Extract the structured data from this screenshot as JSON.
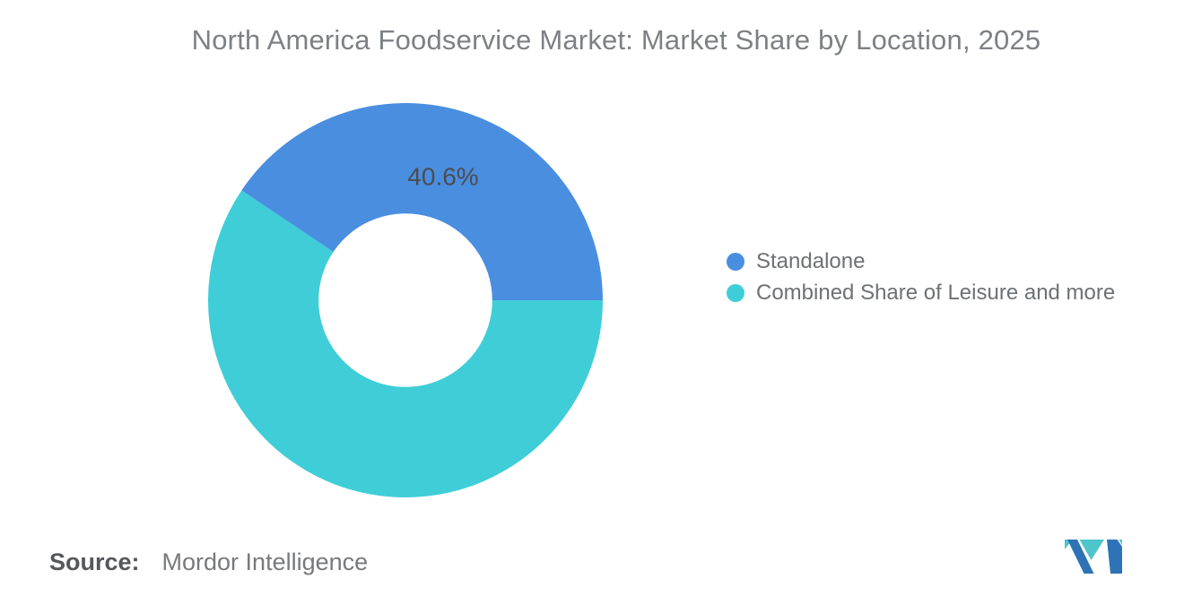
{
  "header": {
    "title": "North America Foodservice Market: Market Share by Location, 2025"
  },
  "chart_data": {
    "type": "pie",
    "subtype": "donut",
    "title": "North America Foodservice Market: Market Share by Location, 2025",
    "categories": [
      "Standalone",
      "Combined Share of Leisure and more"
    ],
    "values": [
      40.6,
      59.4
    ],
    "unit": "%",
    "colors": [
      "#4a8ee0",
      "#3fced8"
    ],
    "hole_ratio": 0.44,
    "first_slice_end_deg": 90,
    "data_label": "40.6%",
    "data_label_slice": "Standalone",
    "legend_position": "right",
    "background": "#ffffff"
  },
  "legend": {
    "items": [
      {
        "label": "Standalone",
        "color": "#4a8ee0"
      },
      {
        "label": "Combined Share of Leisure and more",
        "color": "#3fced8"
      }
    ]
  },
  "source": {
    "label": "Source:",
    "value": "Mordor Intelligence"
  },
  "logo": {
    "name": "Mordor Intelligence",
    "colors": {
      "blue": "#2d73b6",
      "teal": "#4ec5c8"
    }
  }
}
